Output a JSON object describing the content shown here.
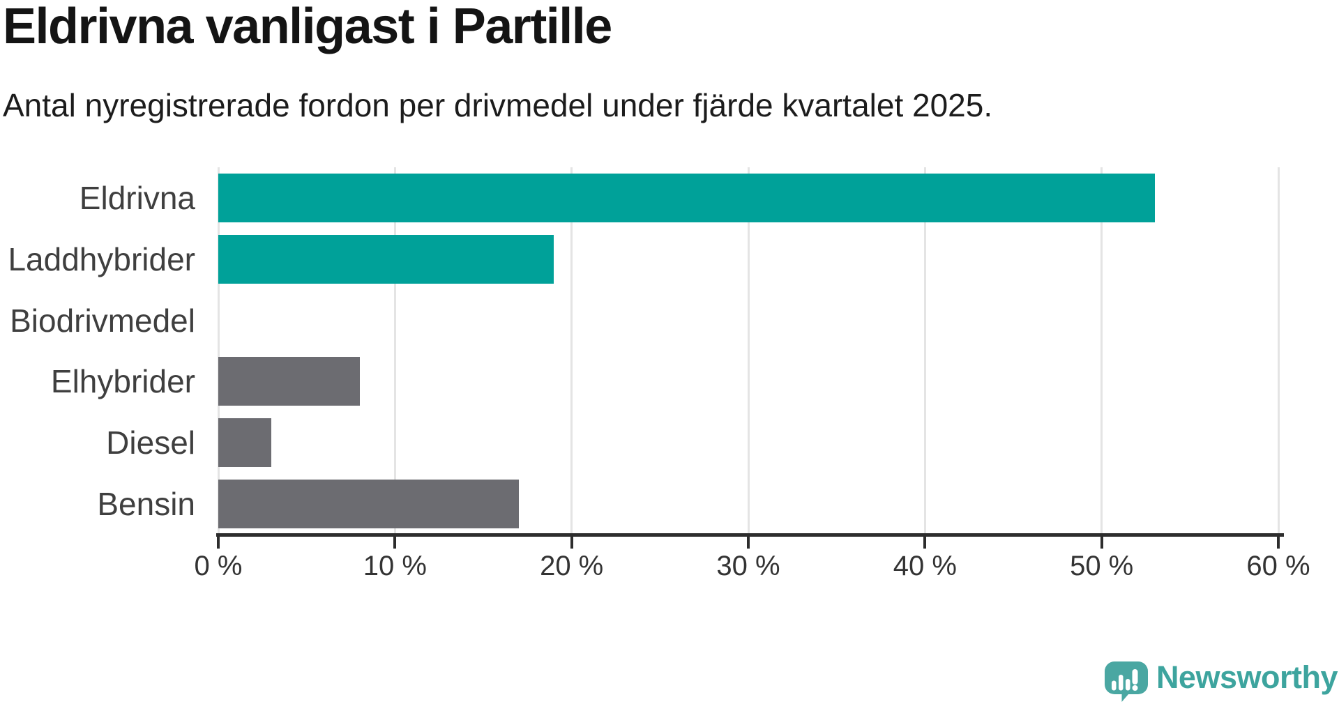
{
  "header": {
    "title": "Eldrivna vanligast i Partille",
    "subtitle": "Antal nyregistrerade fordon per drivmedel under fjärde kvartalet 2025."
  },
  "chart_data": {
    "type": "bar",
    "orientation": "horizontal",
    "title": "Eldrivna vanligast i Partille",
    "subtitle": "Antal nyregistrerade fordon per drivmedel under fjärde kvartalet 2025.",
    "categories": [
      "Eldrivna",
      "Laddhybrider",
      "Biodrivmedel",
      "Elhybrider",
      "Diesel",
      "Bensin"
    ],
    "values": [
      53,
      19,
      0,
      8,
      3,
      17
    ],
    "unit": "%",
    "bar_colors": [
      "#00a199",
      "#00a199",
      "#00a199",
      "#6c6c71",
      "#6c6c71",
      "#6c6c71"
    ],
    "xlim": [
      0,
      60
    ],
    "x_ticks": [
      0,
      10,
      20,
      30,
      40,
      50,
      60
    ],
    "x_tick_labels": [
      "0 %",
      "10 %",
      "20 %",
      "30 %",
      "40 %",
      "50 %",
      "60 %"
    ],
    "grid": true,
    "legend": "none"
  },
  "colors": {
    "accent_teal": "#00a199",
    "neutral_gray": "#6c6c71",
    "gridline": "#e4e4e4",
    "axis": "#2d2d2d",
    "logo_teal": "#4aa7a2",
    "logo_text_teal": "#3da49e"
  },
  "branding": {
    "logo_text": "Newsworthy",
    "logo_icon": "newsworthy-speech-bubble-bar-chart-icon"
  }
}
